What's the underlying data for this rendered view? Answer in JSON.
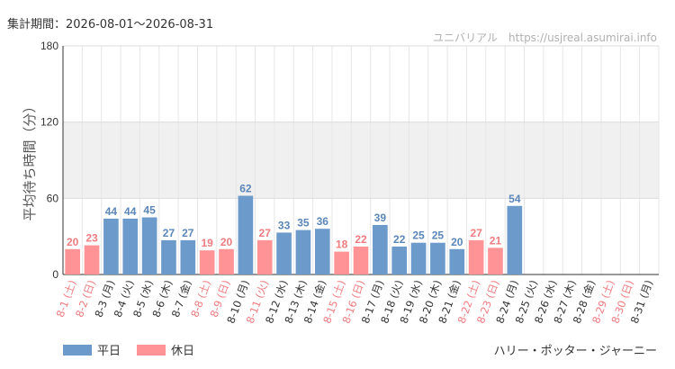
{
  "header": {
    "period_label": "集計期間：2026-08-01～2026-08-31",
    "brand": "ユニバリアル　https://usjreal.asumirai.info"
  },
  "footer": {
    "attraction": "ハリー・ポッター・ジャーニー"
  },
  "legend": [
    {
      "label": "平日",
      "color": "#6c9bcb"
    },
    {
      "label": "休日",
      "color": "#ff9396"
    }
  ],
  "colors": {
    "weekday_bar": "#6c9bcb",
    "holiday_bar": "#ff9396",
    "weekday_text": "#5a86b8",
    "holiday_text": "#ee7c80",
    "weekday_label": "#333333",
    "holiday_label": "#ee7c80",
    "band": "#f0f0f0"
  },
  "chart_data": {
    "type": "bar",
    "ylabel": "平均待ち時間（分）",
    "ylim": [
      0,
      180
    ],
    "yticks": [
      0,
      60,
      120,
      180
    ],
    "shaded_band": [
      60,
      120
    ],
    "grid": true,
    "legend_position": "bottom-left",
    "categories": [
      "8-1 (土)",
      "8-2 (日)",
      "8-3 (月)",
      "8-4 (火)",
      "8-5 (水)",
      "8-6 (木)",
      "8-7 (金)",
      "8-8 (土)",
      "8-9 (日)",
      "8-10 (月)",
      "8-11 (火)",
      "8-12 (水)",
      "8-13 (木)",
      "8-14 (金)",
      "8-15 (土)",
      "8-16 (日)",
      "8-17 (月)",
      "8-18 (火)",
      "8-19 (水)",
      "8-20 (木)",
      "8-21 (金)",
      "8-22 (土)",
      "8-23 (日)",
      "8-24 (月)",
      "8-25 (火)",
      "8-26 (水)",
      "8-27 (木)",
      "8-28 (金)",
      "8-29 (土)",
      "8-30 (日)",
      "8-31 (月)"
    ],
    "day_type": [
      "休日",
      "休日",
      "平日",
      "平日",
      "平日",
      "平日",
      "平日",
      "休日",
      "休日",
      "平日",
      "休日",
      "平日",
      "平日",
      "平日",
      "休日",
      "休日",
      "平日",
      "平日",
      "平日",
      "平日",
      "平日",
      "休日",
      "休日",
      "平日",
      "平日",
      "平日",
      "平日",
      "平日",
      "休日",
      "休日",
      "平日"
    ],
    "values": [
      20,
      23,
      44,
      44,
      45,
      27,
      27,
      19,
      20,
      62,
      27,
      33,
      35,
      36,
      18,
      22,
      39,
      22,
      25,
      25,
      20,
      27,
      21,
      54,
      null,
      null,
      null,
      null,
      null,
      null,
      null
    ]
  }
}
